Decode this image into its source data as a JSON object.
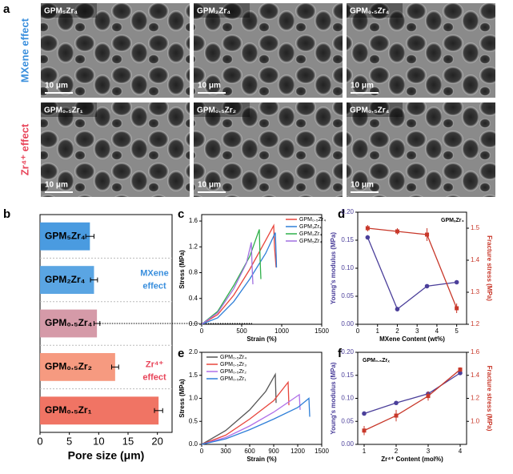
{
  "images": {
    "panel_label": "a",
    "rows": [
      {
        "label": "MXene effect",
        "color": "#3a8fdd",
        "images": [
          {
            "label": "GPM₅Zr₄",
            "scale": "10 μm"
          },
          {
            "label": "GPM₂Zr₄",
            "scale": "10 μm"
          },
          {
            "label": "GPM₀.₅Zr₄",
            "scale": "10 μm"
          }
        ]
      },
      {
        "label": "Zr⁴⁺ effect",
        "color": "#e8455a",
        "images": [
          {
            "label": "GPM₀.₅Zr₁",
            "scale": "10 μm"
          },
          {
            "label": "GPM₀.₅Zr₂",
            "scale": "10 μm"
          },
          {
            "label": "GPM₀.₅Zr₄",
            "scale": "10 μm"
          }
        ]
      }
    ]
  },
  "chart_data": [
    {
      "type": "bar",
      "panel_label": "b",
      "orientation": "horizontal",
      "xlabel": "Pore size (μm)",
      "categories": [
        "GPM₅Zr₄",
        "GPM₂Zr₄",
        "GPM₀.₅Zr₄",
        "GPM₀.₅Zr₂",
        "GPM₀.₅Zr₁"
      ],
      "values": [
        8.5,
        9.2,
        9.7,
        12.8,
        20.2
      ],
      "errors": [
        0.7,
        0.6,
        0.5,
        0.6,
        0.7
      ],
      "colors": [
        "#4a9be0",
        "#5aa5e3",
        "#d59aa8",
        "#f69a80",
        "#f07464"
      ],
      "xlim": [
        0,
        22.5
      ],
      "xticks": [
        0,
        5,
        10,
        15,
        20
      ],
      "annotations": [
        {
          "lines": [
            "MXene",
            "effect"
          ],
          "color": "#3a8fdd"
        },
        {
          "lines": [
            "Zr⁴⁺",
            "effect"
          ],
          "color": "#e8455a"
        }
      ]
    },
    {
      "type": "line",
      "panel_label": "c",
      "xlabel": "Strain (%)",
      "ylabel": "Stress (MPa)",
      "xlim": [
        0,
        1500
      ],
      "xticks": [
        0,
        500,
        1000,
        1500
      ],
      "ylim": [
        0,
        1.7
      ],
      "yticks": [
        {
          "value": 0,
          "label": "0.0"
        },
        0.4,
        0.8,
        1.2,
        1.6
      ],
      "series": [
        {
          "name": "GPM₀.₅Zr₄",
          "color": "#e8453c",
          "x": [
            0,
            200,
            400,
            600,
            800,
            900,
            910,
            930
          ],
          "values": [
            0,
            0.15,
            0.45,
            0.85,
            1.3,
            1.53,
            1.2,
            0.88
          ]
        },
        {
          "name": "GPM₁Zr₄",
          "color": "#2f7fd8",
          "x": [
            0,
            200,
            400,
            600,
            800,
            920,
            930,
            935
          ],
          "values": [
            0,
            0.1,
            0.35,
            0.7,
            1.1,
            1.42,
            1.1,
            0.88
          ]
        },
        {
          "name": "GPM₂Zr₄",
          "color": "#2fb04a",
          "x": [
            0,
            200,
            400,
            600,
            720,
            730,
            740
          ],
          "values": [
            0,
            0.2,
            0.6,
            1.05,
            1.47,
            1.0,
            0.7
          ]
        },
        {
          "name": "GPM₅Zr₄",
          "color": "#a070e0",
          "x": [
            0,
            200,
            400,
            560,
            620,
            630,
            640
          ],
          "values": [
            0,
            0.18,
            0.55,
            0.95,
            1.27,
            0.9,
            0.62
          ]
        }
      ]
    },
    {
      "type": "line",
      "panel_label": "d",
      "markers": true,
      "annotation": "GPMₓZr₄",
      "xlabel": "MXene Content (wt%)",
      "ylabel": "Young's modulus (MPa)",
      "y2label": "Fracture stress (MPa)",
      "xlim": [
        0,
        5.5
      ],
      "xticks": [
        0,
        1,
        2,
        3,
        4,
        5
      ],
      "ylim": [
        0,
        0.2
      ],
      "yticks": [
        {
          "value": 0,
          "label": "0.00"
        },
        {
          "value": 0.05,
          "label": "0.05"
        },
        {
          "value": 0.1,
          "label": "0.10"
        },
        {
          "value": 0.15,
          "label": "0.15"
        },
        {
          "value": 0.2,
          "label": "0.20"
        }
      ],
      "y2lim": [
        1.2,
        1.55
      ],
      "y2ticks": [
        1.2,
        1.3,
        1.4,
        1.5
      ],
      "x": [
        0.5,
        2,
        3.5,
        5
      ],
      "series": [
        {
          "name": "Young's modulus",
          "color": "#4b3f9a",
          "values": [
            0.155,
            0.027,
            0.068,
            0.075
          ],
          "errors": [
            0.004,
            0.004,
            0.003,
            0.003
          ]
        },
        {
          "name": "Fracture stress",
          "color": "#c8382a",
          "axis": "y2",
          "values": [
            1.5,
            1.49,
            1.48,
            1.25
          ],
          "errors": [
            0.01,
            0.01,
            0.02,
            0.015
          ]
        }
      ]
    },
    {
      "type": "line",
      "panel_label": "e",
      "xlabel": "Strain (%)",
      "ylabel": "Stress (MPa)",
      "xlim": [
        0,
        1500
      ],
      "xticks": [
        0,
        300,
        600,
        900,
        1200,
        1500
      ],
      "ylim": [
        0,
        2
      ],
      "yticks": [
        {
          "value": 0,
          "label": "0.0"
        },
        {
          "value": 0.5,
          "label": "0.5"
        },
        {
          "value": 1,
          "label": "1.0"
        },
        {
          "value": 1.5,
          "label": "1.5"
        },
        {
          "value": 2,
          "label": "2.0"
        }
      ],
      "series": [
        {
          "name": "GPM₀.₅Zr₄",
          "color": "#555555",
          "x": [
            0,
            300,
            600,
            800,
            920,
            930
          ],
          "values": [
            0,
            0.3,
            0.75,
            1.15,
            1.52,
            0.9
          ]
        },
        {
          "name": "GPM₀.₅Zr₃",
          "color": "#e8453c",
          "x": [
            0,
            300,
            600,
            900,
            1080,
            1090
          ],
          "values": [
            0,
            0.2,
            0.55,
            0.95,
            1.35,
            0.85
          ]
        },
        {
          "name": "GPM₀.₅Zr₂",
          "color": "#b070e8",
          "x": [
            0,
            300,
            600,
            900,
            1220,
            1230
          ],
          "values": [
            0,
            0.15,
            0.4,
            0.7,
            1.08,
            0.75
          ]
        },
        {
          "name": "GPM₀.₅Zr₁",
          "color": "#2f7fd8",
          "x": [
            0,
            300,
            600,
            900,
            1200,
            1340,
            1350
          ],
          "values": [
            0,
            0.12,
            0.32,
            0.55,
            0.8,
            1.0,
            0.6
          ]
        }
      ]
    },
    {
      "type": "line",
      "panel_label": "f",
      "markers": true,
      "annotation": "GPM₀.₅Zrₓ",
      "xlabel": "Zr⁴⁺ Content (mol%)",
      "ylabel": "Young's modulus (MPa)",
      "y2label": "Fracture stress (MPa)",
      "xlim": [
        0.8,
        4.2
      ],
      "xticks": [
        1,
        2,
        3,
        4
      ],
      "ylim": [
        0,
        0.2
      ],
      "yticks": [
        {
          "value": 0,
          "label": "0.00"
        },
        {
          "value": 0.05,
          "label": "0.05"
        },
        {
          "value": 0.1,
          "label": "0.10"
        },
        {
          "value": 0.15,
          "label": "0.15"
        },
        {
          "value": 0.2,
          "label": "0.20"
        }
      ],
      "y2lim": [
        0.8,
        1.6
      ],
      "y2ticks": [
        {
          "value": 1,
          "label": "1.0"
        },
        1.2,
        1.4,
        1.6
      ],
      "x": [
        1,
        2,
        3,
        4
      ],
      "series": [
        {
          "name": "Young's modulus",
          "color": "#4b3f9a",
          "values": [
            0.067,
            0.09,
            0.11,
            0.155
          ],
          "errors": [
            0.004,
            0.004,
            0.005,
            0.004
          ]
        },
        {
          "name": "Fracture stress",
          "color": "#c8382a",
          "axis": "y2",
          "values": [
            0.92,
            1.05,
            1.22,
            1.45
          ],
          "errors": [
            0.04,
            0.05,
            0.04,
            0.02
          ]
        }
      ]
    }
  ]
}
